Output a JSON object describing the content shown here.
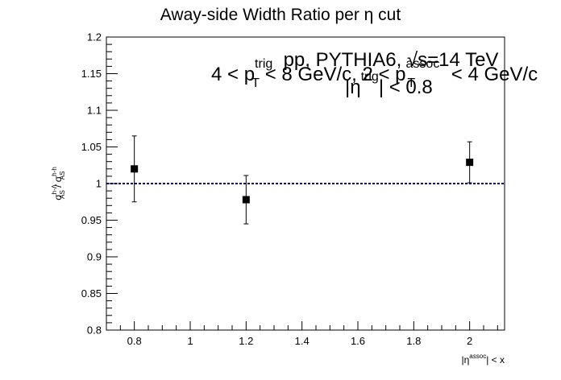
{
  "chart_data": {
    "type": "scatter",
    "title": "Away-side Width Ratio per η cut",
    "xlabel": "|η^assoc| < x",
    "ylabel": "σ_AS^h-Λ / σ_AS^h-h",
    "xlim": [
      0.7,
      2.125
    ],
    "ylim": [
      0.8,
      1.2
    ],
    "x_ticks": [
      0.8,
      1.0,
      1.2,
      1.4,
      1.6,
      1.8,
      2.0
    ],
    "x_tick_labels": [
      "0.8",
      "1",
      "1.2",
      "1.4",
      "1.6",
      "1.8",
      "2"
    ],
    "y_ticks": [
      0.8,
      0.85,
      0.9,
      0.95,
      1.0,
      1.05,
      1.1,
      1.15,
      1.2
    ],
    "y_tick_labels": [
      "0.8",
      "0.85",
      "0.9",
      "0.95",
      "1",
      "1.05",
      "1.1",
      "1.15",
      "1.2"
    ],
    "grid": false,
    "series": [
      {
        "x": [
          0.8,
          1.2,
          2.0
        ],
        "y": [
          1.02,
          0.978,
          1.029
        ],
        "yerr": [
          0.045,
          0.033,
          0.028
        ]
      }
    ],
    "reference_line": {
      "y": 1.0,
      "style": "dashed",
      "color": "#00008b"
    },
    "annotations": {
      "line1": "pp, PYTHIA6, √s=14 TeV",
      "line2": "4 < p_T^trig < 8 GeV/c, 2 < p_T^assoc < 4 GeV/c",
      "line3": "|η^trig| < 0.8"
    }
  }
}
